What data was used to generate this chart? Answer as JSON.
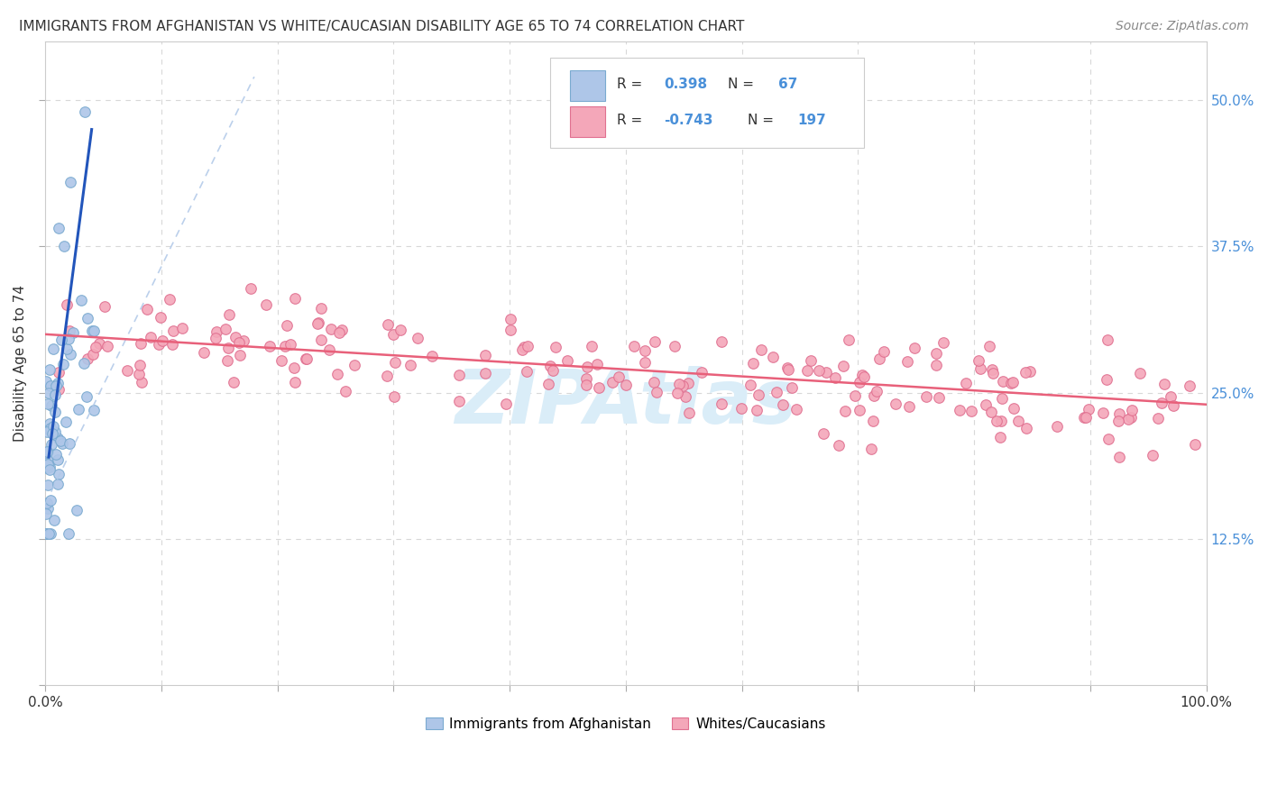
{
  "title": "IMMIGRANTS FROM AFGHANISTAN VS WHITE/CAUCASIAN DISABILITY AGE 65 TO 74 CORRELATION CHART",
  "source": "Source: ZipAtlas.com",
  "ylabel": "Disability Age 65 to 74",
  "xlim": [
    0.0,
    1.0
  ],
  "ylim": [
    0.0,
    0.55
  ],
  "x_tick_positions": [
    0.0,
    0.1,
    0.2,
    0.3,
    0.4,
    0.5,
    0.6,
    0.7,
    0.8,
    0.9,
    1.0
  ],
  "x_tick_labels": [
    "0.0%",
    "",
    "",
    "",
    "",
    "",
    "",
    "",
    "",
    "",
    "100.0%"
  ],
  "y_tick_positions": [
    0.0,
    0.125,
    0.25,
    0.375,
    0.5
  ],
  "y_tick_labels_right": [
    "",
    "12.5%",
    "25.0%",
    "37.5%",
    "50.0%"
  ],
  "legend_entries": [
    {
      "label": "Immigrants from Afghanistan",
      "facecolor": "#aec6e8",
      "edgecolor": "#7aaad0",
      "R": "0.398",
      "N": "67"
    },
    {
      "label": "Whites/Caucasians",
      "facecolor": "#f4a7b9",
      "edgecolor": "#e07090",
      "R": "-0.743",
      "N": "197"
    }
  ],
  "blue_line_color": "#2255bb",
  "blue_dash_color": "#b0c8e8",
  "pink_line_color": "#e8607a",
  "watermark_color": "#daedf8",
  "grid_color": "#d8d8d8",
  "background_color": "#ffffff",
  "title_color": "#333333",
  "source_color": "#888888",
  "right_axis_color": "#4a90d9",
  "ylabel_color": "#333333"
}
